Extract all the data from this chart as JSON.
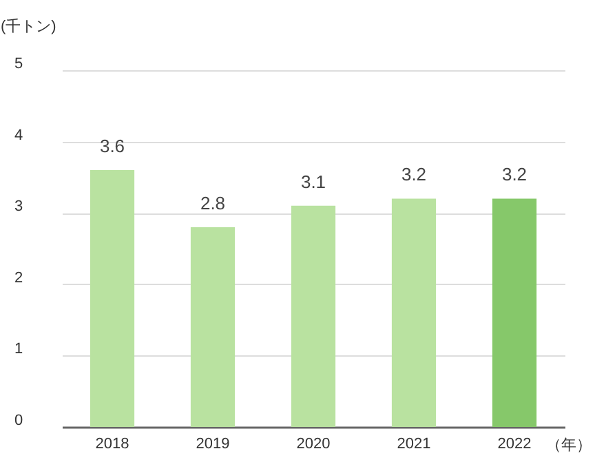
{
  "chart_data": {
    "type": "bar",
    "ylabel": "(千トン)",
    "xlabel": "（年）",
    "categories": [
      "2018",
      "2019",
      "2020",
      "2021",
      "2022"
    ],
    "values": [
      3.6,
      2.8,
      3.1,
      3.2,
      3.2
    ],
    "colors": [
      "#b9e2a0",
      "#b9e2a0",
      "#b9e2a0",
      "#b9e2a0",
      "#86c86a"
    ],
    "ylim": [
      0,
      5
    ],
    "yticks": [
      0,
      1,
      2,
      3,
      4,
      5
    ],
    "grid": "y",
    "data_labels": true
  }
}
